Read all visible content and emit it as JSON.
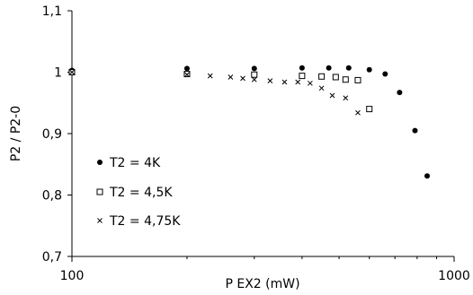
{
  "chart_data": {
    "type": "scatter",
    "title": "",
    "xlabel": "P EX2 (mW)",
    "ylabel": "P2  / P2-0",
    "x_scale": "log",
    "xlim": [
      100,
      1000
    ],
    "ylim": [
      0.7,
      1.1
    ],
    "x_ticks": [
      100,
      1000
    ],
    "x_tick_labels": [
      "100",
      "1000"
    ],
    "y_ticks": [
      0.7,
      0.8,
      0.9,
      1.0,
      1.1
    ],
    "y_tick_labels": [
      "0,7",
      "0,8",
      "0,9",
      "1",
      "1,1"
    ],
    "grid": false,
    "legend_position": "left",
    "series": [
      {
        "name": "T2 = 4K",
        "marker": "filled-circle",
        "x": [
          100,
          200,
          300,
          400,
          470,
          530,
          600,
          660,
          720,
          790,
          850
        ],
        "y": [
          1.003,
          1.006,
          1.006,
          1.007,
          1.007,
          1.007,
          1.004,
          0.997,
          0.967,
          0.905,
          0.831
        ]
      },
      {
        "name": "T2 = 4,5K",
        "marker": "open-square",
        "x": [
          100,
          200,
          300,
          400,
          450,
          490,
          520,
          560,
          600
        ],
        "y": [
          1.0,
          0.997,
          0.996,
          0.994,
          0.993,
          0.992,
          0.988,
          0.987,
          0.94
        ]
      },
      {
        "name": "T2 = 4,75K",
        "marker": "x-cross",
        "x": [
          100,
          200,
          230,
          260,
          280,
          300,
          330,
          360,
          390,
          420,
          450,
          480,
          520,
          560
        ],
        "y": [
          1.0,
          0.996,
          0.994,
          0.992,
          0.99,
          0.988,
          0.986,
          0.984,
          0.984,
          0.982,
          0.974,
          0.962,
          0.958,
          0.934
        ]
      }
    ]
  }
}
